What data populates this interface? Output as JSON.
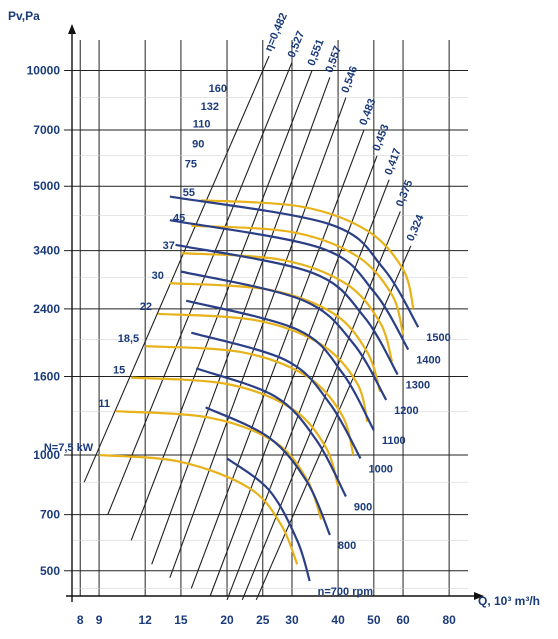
{
  "chart_data": {
    "type": "line",
    "title": "",
    "ylabel": "Pv,Pa",
    "xlabel": "Q, 10³ m³/h",
    "y_scale": "log",
    "x_scale": "log",
    "y_ticks": [
      500,
      700,
      1000,
      1600,
      2400,
      3400,
      5000,
      7000,
      10000
    ],
    "x_ticks": [
      8,
      9,
      12,
      15,
      20,
      25,
      30,
      40,
      50,
      60,
      80
    ],
    "grid": true,
    "colors": {
      "speed_curve": "#2b3f86",
      "power_curve": "#e8b21a",
      "efficiency_line": "#1f1f1f",
      "grid": "#222222",
      "axis_text": "#1a3a7a"
    },
    "speed_curves": [
      {
        "label": "n=700 rpm",
        "points": [
          [
            20,
            980
          ],
          [
            26,
            810
          ],
          [
            31,
            600
          ],
          [
            33.5,
            470
          ]
        ]
      },
      {
        "label": "800",
        "points": [
          [
            17.5,
            1330
          ],
          [
            26,
            1110
          ],
          [
            33,
            850
          ],
          [
            38,
            620
          ]
        ]
      },
      {
        "label": "900",
        "points": [
          [
            16.5,
            1680
          ],
          [
            27,
            1420
          ],
          [
            35,
            1090
          ],
          [
            42,
            780
          ]
        ]
      },
      {
        "label": "1000",
        "points": [
          [
            16,
            2080
          ],
          [
            29,
            1760
          ],
          [
            38,
            1360
          ],
          [
            46,
            980
          ]
        ]
      },
      {
        "label": "1100",
        "points": [
          [
            15.5,
            2520
          ],
          [
            31,
            2120
          ],
          [
            41,
            1640
          ],
          [
            50,
            1160
          ]
        ]
      },
      {
        "label": "1200",
        "points": [
          [
            15,
            3000
          ],
          [
            32,
            2530
          ],
          [
            44,
            1950
          ],
          [
            54,
            1390
          ]
        ]
      },
      {
        "label": "1300",
        "points": [
          [
            14.5,
            3520
          ],
          [
            34,
            2980
          ],
          [
            47,
            2290
          ],
          [
            58,
            1620
          ]
        ]
      },
      {
        "label": "1400",
        "points": [
          [
            14,
            4080
          ],
          [
            36,
            3450
          ],
          [
            50,
            2660
          ],
          [
            62,
            1880
          ]
        ]
      },
      {
        "label": "1500",
        "points": [
          [
            14,
            4700
          ],
          [
            38,
            3980
          ],
          [
            53,
            3060
          ],
          [
            66,
            2150
          ]
        ]
      }
    ],
    "power_curves": [
      {
        "label": "N=7,5 kW",
        "points": [
          [
            9,
            1000
          ],
          [
            15,
            960
          ],
          [
            23,
            820
          ],
          [
            28,
            660
          ],
          [
            31,
            520
          ]
        ]
      },
      {
        "label": "11",
        "points": [
          [
            10,
            1300
          ],
          [
            18,
            1250
          ],
          [
            27,
            1080
          ],
          [
            33,
            860
          ],
          [
            36,
            680
          ]
        ]
      },
      {
        "label": "15",
        "points": [
          [
            11,
            1590
          ],
          [
            20,
            1530
          ],
          [
            30,
            1320
          ],
          [
            37,
            1050
          ],
          [
            40,
            830
          ]
        ]
      },
      {
        "label": "18,5",
        "points": [
          [
            12,
            1920
          ],
          [
            22,
            1850
          ],
          [
            33,
            1600
          ],
          [
            41,
            1270
          ],
          [
            44,
            1000
          ]
        ]
      },
      {
        "label": "22",
        "points": [
          [
            13,
            2330
          ],
          [
            24,
            2240
          ],
          [
            36,
            1940
          ],
          [
            45,
            1540
          ],
          [
            48,
            1220
          ]
        ]
      },
      {
        "label": "30",
        "points": [
          [
            14,
            2800
          ],
          [
            26,
            2690
          ],
          [
            39,
            2330
          ],
          [
            48,
            1850
          ],
          [
            52,
            1460
          ]
        ]
      },
      {
        "label": "37",
        "points": [
          [
            15,
            3350
          ],
          [
            28,
            3220
          ],
          [
            42,
            2790
          ],
          [
            52,
            2210
          ],
          [
            56,
            1750
          ]
        ]
      },
      {
        "label": "45",
        "points": [
          [
            16,
            3950
          ],
          [
            30,
            3800
          ],
          [
            45,
            3290
          ],
          [
            56,
            2610
          ],
          [
            60,
            2060
          ]
        ]
      },
      {
        "label": "55",
        "points": [
          [
            17,
            4600
          ],
          [
            32,
            4420
          ],
          [
            48,
            3830
          ],
          [
            60,
            3040
          ],
          [
            64,
            2400
          ]
        ]
      }
    ],
    "power_labels_upper": [
      "160",
      "132",
      "110",
      "90",
      "75"
    ],
    "efficiency_lines": [
      {
        "label": "η=0,482",
        "points": [
          [
            8.2,
            850
          ],
          [
            26,
            10900
          ]
        ]
      },
      {
        "label": "0,527",
        "points": [
          [
            9.5,
            700
          ],
          [
            30,
            10500
          ]
        ]
      },
      {
        "label": "0,551",
        "points": [
          [
            11,
            600
          ],
          [
            34,
            10000
          ]
        ]
      },
      {
        "label": "0,557",
        "points": [
          [
            12.5,
            520
          ],
          [
            38,
            9600
          ]
        ]
      },
      {
        "label": "0,546",
        "points": [
          [
            14,
            480
          ],
          [
            42,
            8500
          ]
        ]
      },
      {
        "label": "0,483",
        "points": [
          [
            16,
            450
          ],
          [
            47,
            7000
          ]
        ]
      },
      {
        "label": "0,453",
        "points": [
          [
            18,
            430
          ],
          [
            51,
            6000
          ]
        ]
      },
      {
        "label": "0,417",
        "points": [
          [
            20,
            420
          ],
          [
            55,
            5200
          ]
        ]
      },
      {
        "label": "0,375",
        "points": [
          [
            22,
            420
          ],
          [
            59,
            4300
          ]
        ]
      },
      {
        "label": "0,324",
        "points": [
          [
            24,
            420
          ],
          [
            63,
            3500
          ]
        ]
      }
    ]
  }
}
